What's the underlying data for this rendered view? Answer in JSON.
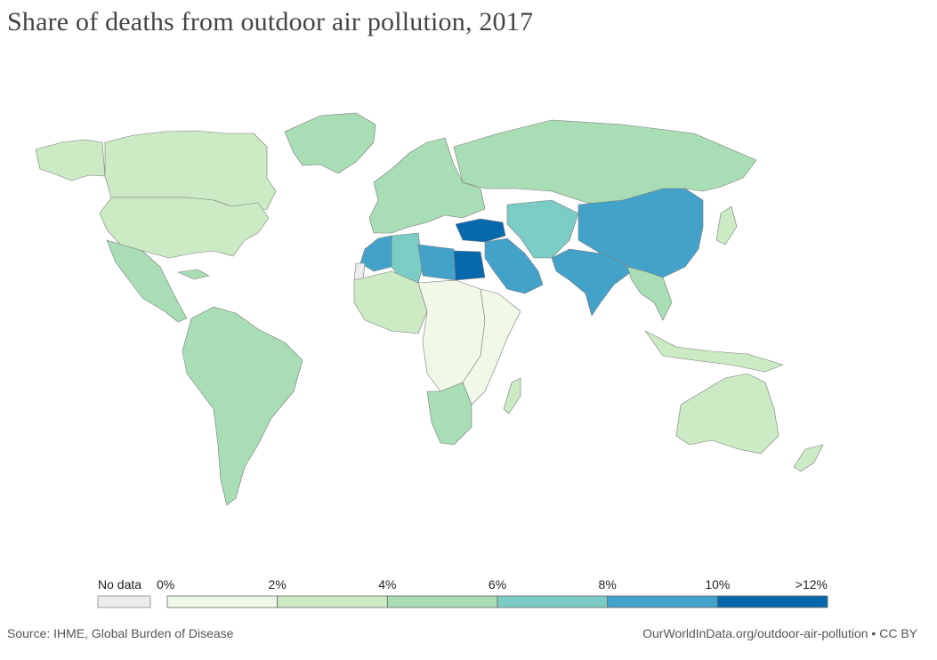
{
  "title": "Share of deaths from outdoor air pollution, 2017",
  "source": "Source: IHME, Global Burden of Disease",
  "url": "OurWorldInData.org/outdoor-air-pollution • CC BY",
  "legend": {
    "no_data_label": "No data",
    "no_data_color": "#ececec",
    "tick_labels": [
      "0%",
      "2%",
      "4%",
      "6%",
      "8%",
      "10%",
      ">12%"
    ],
    "colors": [
      "#f0f9e8",
      "#ccebc5",
      "#a8ddb5",
      "#7bccc4",
      "#43a2ca",
      "#0868ac"
    ]
  },
  "regions": {
    "greenland": "#a8ddb5",
    "canada": "#ccebc5",
    "usa": "#ccebc5",
    "alaska": "#ccebc5",
    "mexico_central_america": "#a8ddb5",
    "caribbean": "#a8ddb5",
    "south_america": "#a8ddb5",
    "europe": "#a8ddb5",
    "russia": "#a8ddb5",
    "turkey": "#0868ac",
    "egypt": "#0868ac",
    "middle_east": "#43a2ca",
    "central_asia": "#7bccc4",
    "china": "#43a2ca",
    "india": "#43a2ca",
    "southeast_asia": "#a8ddb5",
    "maghreb": "#43a2ca",
    "algeria": "#7bccc4",
    "west_africa": "#ccebc5",
    "central_africa": "#f0f9e8",
    "east_africa": "#f0f9e8",
    "southern_africa": "#a8ddb5",
    "madagascar": "#ccebc5",
    "australia": "#ccebc5",
    "new_zealand": "#ccebc5",
    "indonesia": "#ccebc5",
    "japan": "#ccebc5",
    "western_sahara": "#ececec"
  }
}
